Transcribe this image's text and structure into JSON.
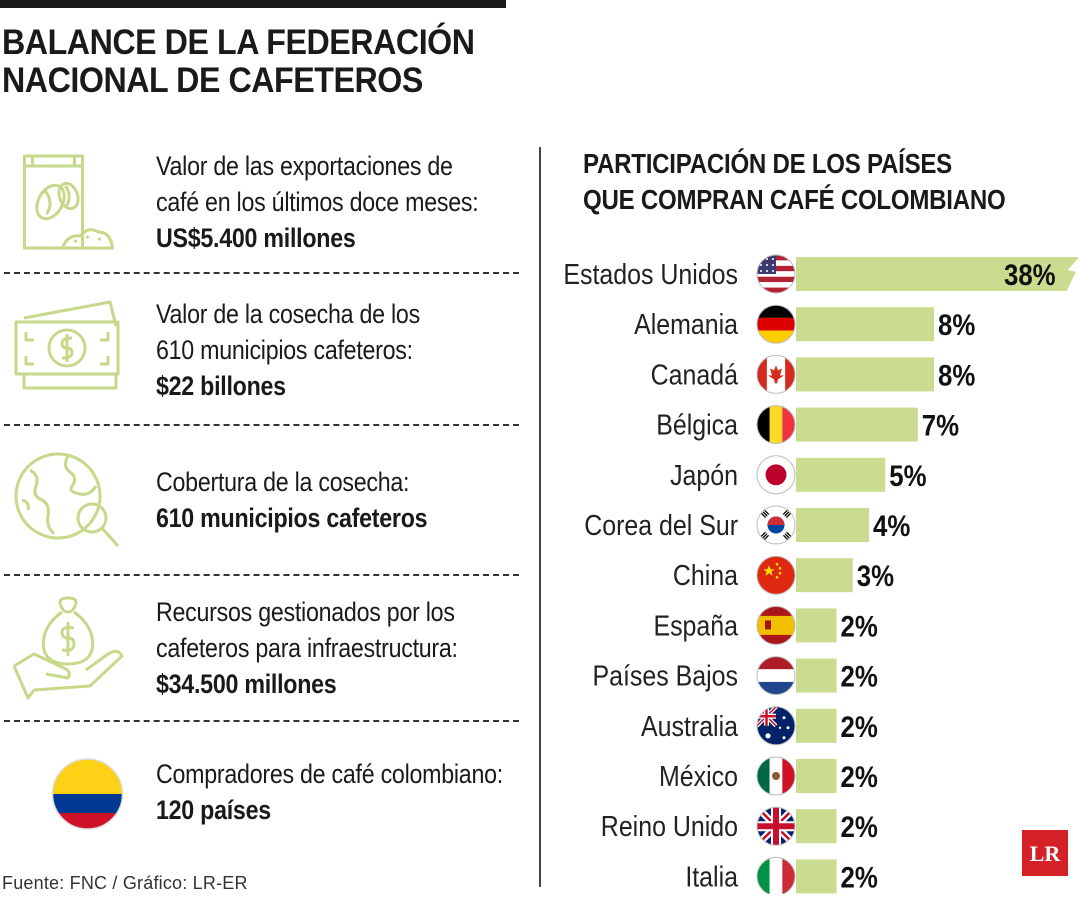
{
  "header": {
    "title_line1": "BALANCE DE LA FEDERACIÓN",
    "title_line2": "NACIONAL DE CAFETEROS"
  },
  "stats": [
    {
      "icon": "coffee-bag-icon",
      "line1": "Valor de las exportaciones de",
      "line2": "café en los últimos doce meses:",
      "value": "US$5.400 millones"
    },
    {
      "icon": "money-bill-icon",
      "line1": "Valor de la cosecha de los",
      "line2": "610 municipios cafeteros:",
      "value": "$22 billones"
    },
    {
      "icon": "globe-search-icon",
      "line1": "Cobertura de la cosecha:",
      "line2": "",
      "value": "610 municipios cafeteros"
    },
    {
      "icon": "money-bag-hand-icon",
      "line1": "Recursos gestionados por los",
      "line2": "cafeteros para infraestructura:",
      "value": "$34.500 millones"
    },
    {
      "icon": "colombia-flag-icon",
      "line1": "Compradores de café colombiano:",
      "line2": "",
      "value": "120 países"
    }
  ],
  "source": "Fuente: FNC / Gráfico: LR-ER",
  "brand": "LR",
  "colors": {
    "bar": "#c9dc8f",
    "icon_stroke": "#c6d98a",
    "brand_red": "#d42027"
  },
  "chart_data": {
    "type": "bar",
    "orientation": "horizontal",
    "title_line1": "PARTICIPACIÓN DE LOS PAÍSES",
    "title_line2": "QUE COMPRAN CAFÉ COLOMBIANO",
    "categories": [
      "Estados Unidos",
      "Alemania",
      "Canadá",
      "Bélgica",
      "Japón",
      "Corea del Sur",
      "China",
      "España",
      "Países Bajos",
      "Australia",
      "México",
      "Reino Unido",
      "Italia"
    ],
    "values": [
      38,
      8,
      8,
      7,
      5,
      4,
      3,
      2,
      2,
      2,
      2,
      2,
      2
    ],
    "value_labels": [
      "38%",
      "8%",
      "8%",
      "7%",
      "5%",
      "4%",
      "3%",
      "2%",
      "2%",
      "2%",
      "2%",
      "2%",
      "2%"
    ],
    "flags": [
      "usa",
      "germany",
      "canada",
      "belgium",
      "japan",
      "korea",
      "china",
      "spain",
      "netherlands",
      "australia",
      "mexico",
      "uk",
      "italy"
    ],
    "axis_break_on": "Estados Unidos",
    "unit": "%"
  }
}
